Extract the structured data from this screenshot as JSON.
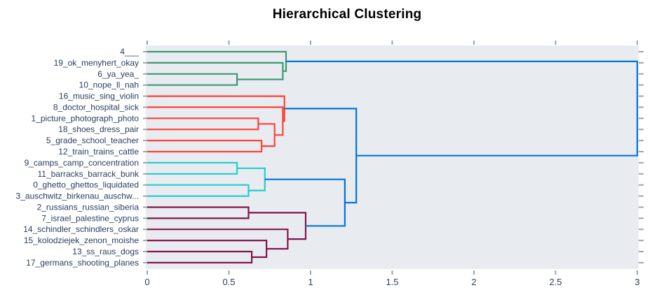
{
  "chart_data": {
    "type": "dendrogram",
    "title": "Hierarchical Clustering",
    "orientation": "left",
    "legend": "none",
    "grid": "off",
    "x_axis": {
      "tick_labels": [
        "0",
        "0.5",
        "1",
        "1.5",
        "2",
        "2.5",
        "3"
      ],
      "tick_values": [
        0,
        0.5,
        1,
        1.5,
        2,
        2.5,
        3
      ],
      "range": [
        0,
        3.01
      ]
    },
    "leaves": [
      "4___",
      "19_ok_menyhert_okay",
      "6_ya_yea_",
      "10_nope_ll_nah",
      "16_music_sing_violin",
      "8_doctor_hospital_sick",
      "1_picture_photograph_photo",
      "18_shoes_dress_pair",
      "5_grade_school_teacher",
      "12_train_trains_cattle",
      "9_camps_camp_concentration",
      "11_barracks_barrack_bunk",
      "0_ghetto_ghettos_liquidated",
      "3_auschwitz_birkenau_auschw...",
      "2_russians_russian_siberia",
      "7_israel_palestine_cyprus",
      "14_schindler_schindlers_oskar",
      "15_kolodziejek_zenon_moishe",
      "13_ss_raus_dogs",
      "17_germans_shooting_planes"
    ],
    "merges": [
      {
        "id": "M0",
        "children": [
          "L2",
          "L3"
        ],
        "distance": 0.55,
        "color_key": "green"
      },
      {
        "id": "M1",
        "children": [
          "L1",
          "M0"
        ],
        "distance": 0.83,
        "color_key": "green"
      },
      {
        "id": "M2",
        "children": [
          "L0",
          "M1"
        ],
        "distance": 0.85,
        "color_key": "green"
      },
      {
        "id": "M3",
        "children": [
          "L6",
          "L7"
        ],
        "distance": 0.68,
        "color_key": "red"
      },
      {
        "id": "M4",
        "children": [
          "L8",
          "L9"
        ],
        "distance": 0.7,
        "color_key": "red"
      },
      {
        "id": "M5",
        "children": [
          "M3",
          "M4"
        ],
        "distance": 0.78,
        "color_key": "red"
      },
      {
        "id": "M6",
        "children": [
          "L5",
          "M5"
        ],
        "distance": 0.83,
        "color_key": "red"
      },
      {
        "id": "M7",
        "children": [
          "L4",
          "M6"
        ],
        "distance": 0.84,
        "color_key": "red"
      },
      {
        "id": "M8",
        "children": [
          "L10",
          "L11"
        ],
        "distance": 0.55,
        "color_key": "cyan"
      },
      {
        "id": "M9",
        "children": [
          "L12",
          "L13"
        ],
        "distance": 0.62,
        "color_key": "cyan"
      },
      {
        "id": "M10",
        "children": [
          "M8",
          "M9"
        ],
        "distance": 0.72,
        "color_key": "cyan"
      },
      {
        "id": "M11",
        "children": [
          "L14",
          "L15"
        ],
        "distance": 0.62,
        "color_key": "maroon"
      },
      {
        "id": "M12",
        "children": [
          "L18",
          "L19"
        ],
        "distance": 0.64,
        "color_key": "maroon"
      },
      {
        "id": "M13",
        "children": [
          "L17",
          "M12"
        ],
        "distance": 0.73,
        "color_key": "maroon"
      },
      {
        "id": "M14",
        "children": [
          "L16",
          "M13"
        ],
        "distance": 0.86,
        "color_key": "maroon"
      },
      {
        "id": "M15",
        "children": [
          "M11",
          "M14"
        ],
        "distance": 0.97,
        "color_key": "maroon"
      },
      {
        "id": "M16",
        "children": [
          "M10",
          "M15"
        ],
        "distance": 1.21,
        "color_key": "blue"
      },
      {
        "id": "M17",
        "children": [
          "M7",
          "M16"
        ],
        "distance": 1.28,
        "color_key": "blue"
      },
      {
        "id": "M18",
        "children": [
          "M2",
          "M17"
        ],
        "distance": 3.0,
        "color_key": "blue"
      }
    ],
    "colors": {
      "green": "#3D9970",
      "red": "#FF4136",
      "cyan": "#23CDCD",
      "maroon": "#85144B",
      "blue": "#0074D9",
      "plot_bg": "#E8ECF1",
      "label": "#2A3F5F",
      "tick": "#9BA3AF",
      "title": "#000000"
    }
  }
}
